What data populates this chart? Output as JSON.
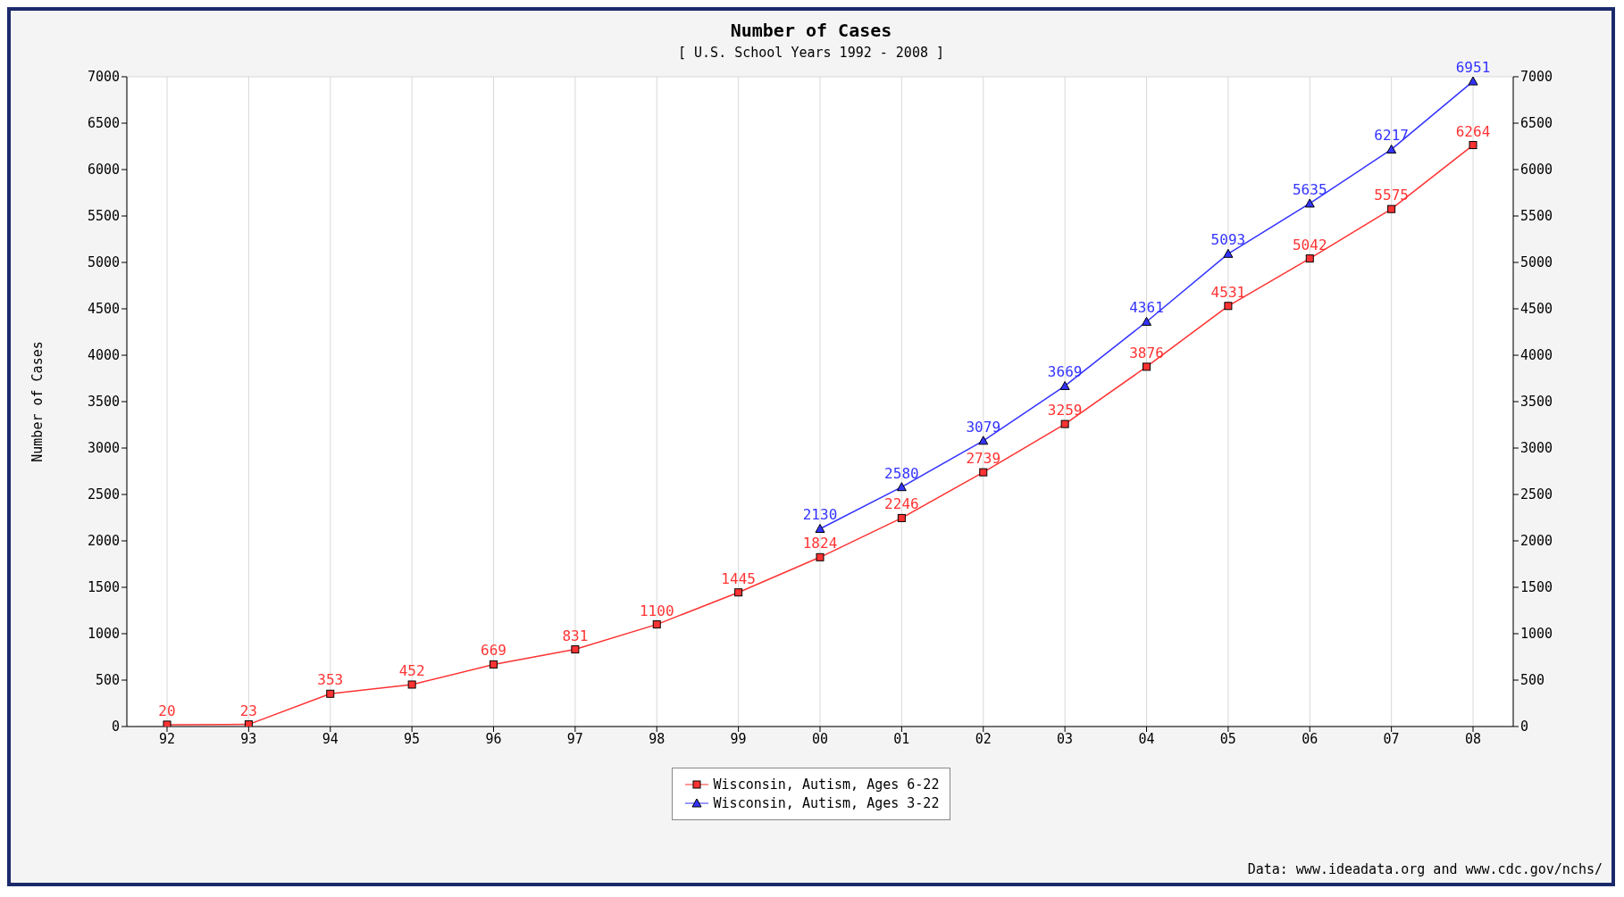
{
  "chart_data": {
    "type": "line",
    "title": "Number of Cases",
    "subtitle": "[ U.S. School Years 1992 - 2008 ]",
    "ylabel": "Number of Cases",
    "categories": [
      "92",
      "93",
      "94",
      "95",
      "96",
      "97",
      "98",
      "99",
      "00",
      "01",
      "02",
      "03",
      "04",
      "05",
      "06",
      "07",
      "08"
    ],
    "series": [
      {
        "name": "Wisconsin, Autism, Ages 6-22",
        "color": "#ff3333",
        "marker": "square",
        "values": [
          20,
          23,
          353,
          452,
          669,
          831,
          1100,
          1445,
          1824,
          2246,
          2739,
          3259,
          3876,
          4531,
          5042,
          5575,
          6264
        ]
      },
      {
        "name": "Wisconsin, Autism, Ages 3-22",
        "color": "#3333ff",
        "marker": "triangle",
        "values": [
          null,
          null,
          null,
          null,
          null,
          null,
          null,
          null,
          2130,
          2580,
          3079,
          3669,
          4361,
          5093,
          5635,
          6217,
          6951
        ]
      }
    ],
    "ylim": [
      0,
      7000
    ],
    "yticks": [
      0,
      500,
      1000,
      1500,
      2000,
      2500,
      3000,
      3500,
      4000,
      4500,
      5000,
      5500,
      6000,
      6500,
      7000
    ],
    "y2lim": [
      0,
      7000
    ],
    "y2ticks": [
      0,
      500,
      1000,
      1500,
      2000,
      2500,
      3000,
      3500,
      4000,
      4500,
      5000,
      5500,
      6000,
      6500,
      7000
    ],
    "grid": true,
    "legend": "bottom",
    "data_labels": true,
    "line_style": "solid",
    "annotations": [
      "Data: www.ideadata.org and www.cdc.gov/nchs/"
    ]
  }
}
